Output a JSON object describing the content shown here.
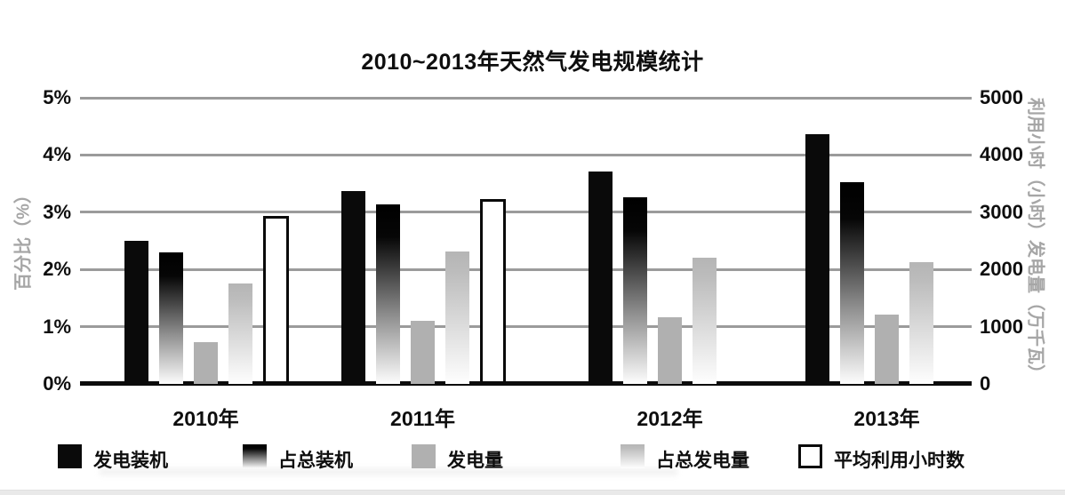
{
  "title": "2010~2013年天然气发电规模统计",
  "chart_data": {
    "type": "bar",
    "title": "2010~2013年天然气发电规模统计",
    "categories": [
      "2010年",
      "2011年",
      "2012年",
      "2013年"
    ],
    "left_axis": {
      "label": "百分比（%）",
      "tick_labels": [
        "0%",
        "1%",
        "2%",
        "3%",
        "4%",
        "5%"
      ],
      "min": 0,
      "max": 5
    },
    "right_axis": {
      "label": "利用小时（小时）发电量（万千瓦）",
      "tick_labels": [
        "0",
        "1000",
        "2000",
        "3000",
        "4000",
        "5000"
      ],
      "min": 0,
      "max": 5000
    },
    "grid": true,
    "legend_position": "bottom",
    "series": [
      {
        "name": "发电装机",
        "axis": "right",
        "style": "solid-black",
        "values": [
          2500,
          3370,
          3710,
          4360
        ]
      },
      {
        "name": "占总装机",
        "axis": "left",
        "style": "black-gradient",
        "values": [
          2.3,
          3.13,
          3.26,
          3.53
        ]
      },
      {
        "name": "发电量",
        "axis": "right",
        "style": "solid-gray",
        "values": [
          730,
          1100,
          1160,
          1210
        ]
      },
      {
        "name": "占总发电量",
        "axis": "left",
        "style": "gray-gradient",
        "values": [
          1.75,
          2.32,
          2.2,
          2.13
        ]
      },
      {
        "name": "平均利用小时数",
        "axis": "right",
        "style": "white-outline",
        "values": [
          2930,
          3230,
          null,
          null
        ]
      }
    ]
  },
  "colors": {
    "bar_black": "#0a0a0a",
    "bar_gray": "#b0b0b0",
    "gridline": "#9b9b9b",
    "baseline": "#0c0c0c",
    "axis_title_gray": "#a6a6a6",
    "text": "#0e0e0e",
    "background": "#ffffff"
  }
}
